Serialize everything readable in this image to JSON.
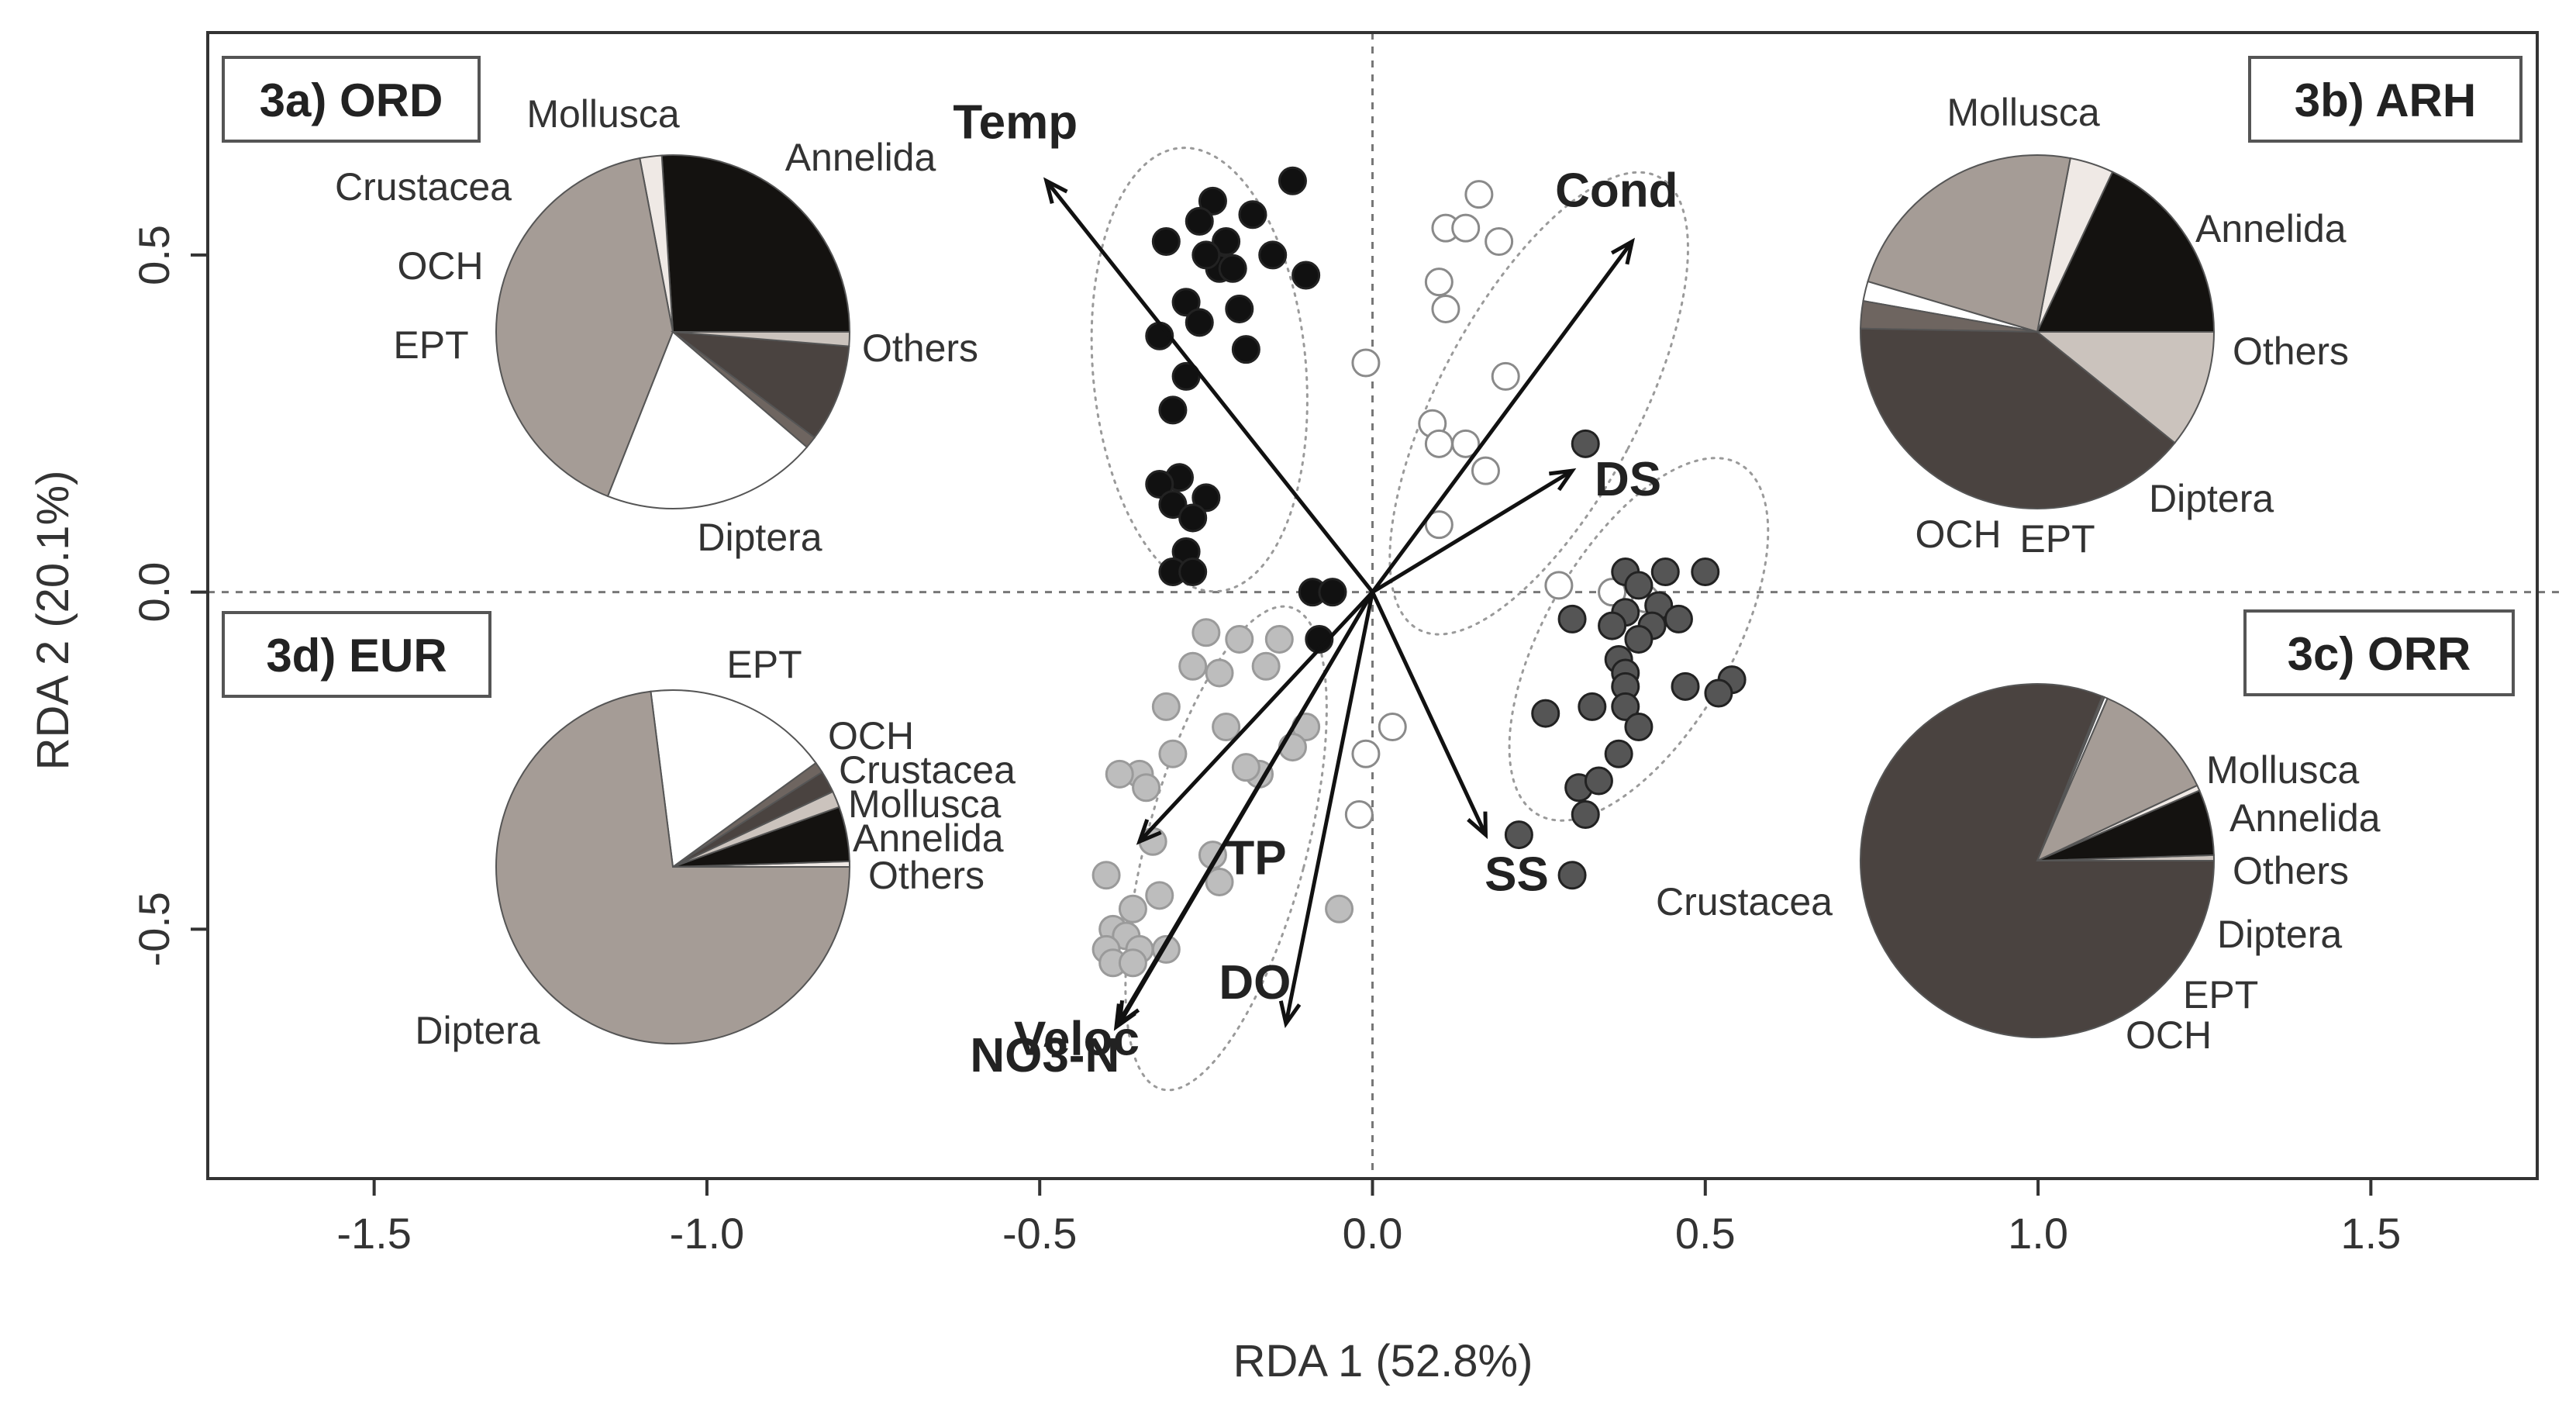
{
  "chart_data": {
    "type": "scatter",
    "subtype": "RDA biplot with pie-chart insets",
    "xlabel": "RDA 1 (52.8%)",
    "ylabel": "RDA 2 (20.1%)",
    "xlim": [
      -1.75,
      1.75
    ],
    "ylim": [
      -0.87,
      0.83
    ],
    "x_ticks": [
      -1.5,
      -1.0,
      -0.5,
      0.0,
      0.5,
      1.0,
      1.5
    ],
    "x_tick_labels": [
      "-1.5",
      "-1.0",
      "-0.5",
      "0.0",
      "0.5",
      "1.0",
      "1.5"
    ],
    "y_ticks": [
      -0.5,
      0.0,
      0.5
    ],
    "y_tick_labels": [
      "-0.5",
      "0.0",
      "0.5"
    ],
    "origin_lines": true,
    "colors": {
      "ORD": "#111111",
      "ARH": "#ffffff",
      "ORR": "#555555",
      "EUR": "#bdbdbd",
      "arrow": "#111111",
      "ellipse": "#9a9a9a",
      "Mollusca": "#cbc3bd",
      "Annelida": "#141210",
      "Others": "#efe9e5",
      "Diptera": "#a59c96",
      "EPT": "#ffffff",
      "OCH": "#6e6560",
      "Crustacea": "#4a4340"
    },
    "arrows": [
      {
        "label": "Temp",
        "x": -0.49,
        "y": 0.61
      },
      {
        "label": "Cond",
        "x": 0.39,
        "y": 0.52
      },
      {
        "label": "DS",
        "x": 0.3,
        "y": 0.18
      },
      {
        "label": "SS",
        "x": 0.17,
        "y": -0.36
      },
      {
        "label": "TP",
        "x": -0.35,
        "y": -0.37
      },
      {
        "label": "NO3-N",
        "x": -0.38,
        "y": -0.64
      },
      {
        "label": "DO",
        "x": -0.13,
        "y": -0.64
      },
      {
        "label": "Veloc",
        "x": -0.385,
        "y": -0.645
      }
    ],
    "ellipses": [
      {
        "group": "ORD",
        "cx": -0.26,
        "cy": 0.33,
        "rx": 0.16,
        "ry": 0.33,
        "angle": -5
      },
      {
        "group": "ARH",
        "cx": 0.25,
        "cy": 0.28,
        "rx": 0.15,
        "ry": 0.38,
        "angle": 28
      },
      {
        "group": "ORR",
        "cx": 0.4,
        "cy": -0.07,
        "rx": 0.14,
        "ry": 0.3,
        "angle": 30
      },
      {
        "group": "EUR",
        "cx": -0.22,
        "cy": -0.38,
        "rx": 0.12,
        "ry": 0.37,
        "angle": 15
      }
    ],
    "series": [
      {
        "name": "ORD",
        "fill": "#111111",
        "points": [
          [
            -0.24,
            0.58
          ],
          [
            -0.12,
            0.61
          ],
          [
            -0.18,
            0.56
          ],
          [
            -0.26,
            0.55
          ],
          [
            -0.22,
            0.52
          ],
          [
            -0.15,
            0.5
          ],
          [
            -0.31,
            0.52
          ],
          [
            -0.23,
            0.48
          ],
          [
            -0.25,
            0.5
          ],
          [
            -0.21,
            0.48
          ],
          [
            -0.1,
            0.47
          ],
          [
            -0.28,
            0.43
          ],
          [
            -0.2,
            0.42
          ],
          [
            -0.26,
            0.4
          ],
          [
            -0.32,
            0.38
          ],
          [
            -0.19,
            0.36
          ],
          [
            -0.28,
            0.32
          ],
          [
            -0.3,
            0.27
          ],
          [
            -0.29,
            0.17
          ],
          [
            -0.32,
            0.16
          ],
          [
            -0.25,
            0.14
          ],
          [
            -0.3,
            0.13
          ],
          [
            -0.27,
            0.11
          ],
          [
            -0.28,
            0.06
          ],
          [
            -0.3,
            0.03
          ],
          [
            -0.27,
            0.03
          ],
          [
            -0.09,
            0.0
          ],
          [
            -0.06,
            0.0
          ],
          [
            -0.08,
            -0.07
          ]
        ]
      },
      {
        "name": "ARH",
        "fill": "#ffffff",
        "points": [
          [
            0.16,
            0.59
          ],
          [
            0.11,
            0.54
          ],
          [
            0.14,
            0.54
          ],
          [
            0.19,
            0.52
          ],
          [
            0.1,
            0.46
          ],
          [
            0.11,
            0.42
          ],
          [
            -0.01,
            0.34
          ],
          [
            0.2,
            0.32
          ],
          [
            0.09,
            0.25
          ],
          [
            0.1,
            0.22
          ],
          [
            0.14,
            0.22
          ],
          [
            0.17,
            0.18
          ],
          [
            0.1,
            0.1
          ],
          [
            0.28,
            0.01
          ],
          [
            0.36,
            0.0
          ],
          [
            0.41,
            -0.01
          ],
          [
            -0.01,
            -0.24
          ],
          [
            -0.02,
            -0.33
          ],
          [
            0.03,
            -0.2
          ]
        ]
      },
      {
        "name": "ORR",
        "fill": "#555555",
        "points": [
          [
            0.32,
            0.22
          ],
          [
            0.38,
            0.03
          ],
          [
            0.44,
            0.03
          ],
          [
            0.5,
            0.03
          ],
          [
            0.4,
            0.01
          ],
          [
            0.43,
            -0.02
          ],
          [
            0.38,
            -0.03
          ],
          [
            0.46,
            -0.04
          ],
          [
            0.3,
            -0.04
          ],
          [
            0.36,
            -0.05
          ],
          [
            0.42,
            -0.05
          ],
          [
            0.4,
            -0.07
          ],
          [
            0.37,
            -0.1
          ],
          [
            0.38,
            -0.12
          ],
          [
            0.54,
            -0.13
          ],
          [
            0.47,
            -0.14
          ],
          [
            0.38,
            -0.14
          ],
          [
            0.52,
            -0.15
          ],
          [
            0.33,
            -0.17
          ],
          [
            0.26,
            -0.18
          ],
          [
            0.38,
            -0.17
          ],
          [
            0.4,
            -0.2
          ],
          [
            0.37,
            -0.24
          ],
          [
            0.31,
            -0.29
          ],
          [
            0.34,
            -0.28
          ],
          [
            0.32,
            -0.33
          ],
          [
            0.22,
            -0.36
          ],
          [
            0.3,
            -0.42
          ]
        ]
      },
      {
        "name": "EUR",
        "fill": "#bdbdbd",
        "points": [
          [
            -0.25,
            -0.06
          ],
          [
            -0.2,
            -0.07
          ],
          [
            -0.14,
            -0.07
          ],
          [
            -0.27,
            -0.11
          ],
          [
            -0.23,
            -0.12
          ],
          [
            -0.16,
            -0.11
          ],
          [
            -0.31,
            -0.17
          ],
          [
            -0.22,
            -0.2
          ],
          [
            -0.1,
            -0.2
          ],
          [
            -0.3,
            -0.24
          ],
          [
            -0.12,
            -0.23
          ],
          [
            -0.17,
            -0.27
          ],
          [
            -0.35,
            -0.27
          ],
          [
            -0.38,
            -0.27
          ],
          [
            -0.19,
            -0.26
          ],
          [
            -0.34,
            -0.29
          ],
          [
            -0.33,
            -0.37
          ],
          [
            -0.24,
            -0.39
          ],
          [
            -0.23,
            -0.43
          ],
          [
            -0.4,
            -0.42
          ],
          [
            -0.32,
            -0.45
          ],
          [
            -0.36,
            -0.47
          ],
          [
            -0.39,
            -0.5
          ],
          [
            -0.37,
            -0.51
          ],
          [
            -0.35,
            -0.53
          ],
          [
            -0.31,
            -0.53
          ],
          [
            -0.4,
            -0.53
          ],
          [
            -0.39,
            -0.55
          ],
          [
            -0.36,
            -0.55
          ],
          [
            -0.05,
            -0.47
          ]
        ]
      }
    ],
    "pies": [
      {
        "id": "ORD",
        "label": "3a) ORD",
        "anchor": [
          -1.06,
          0.4
        ],
        "slices": [
          {
            "name": "Annelida",
            "value": 26.0
          },
          {
            "name": "Others",
            "value": 2.0
          },
          {
            "name": "Diptera",
            "value": 41.0
          },
          {
            "name": "EPT",
            "value": 19.7
          },
          {
            "name": "OCH",
            "value": 1.1
          },
          {
            "name": "Crustacea",
            "value": 8.9
          },
          {
            "name": "Mollusca",
            "value": 1.3
          }
        ]
      },
      {
        "id": "ARH",
        "label": "3b) ARH",
        "anchor": [
          0.98,
          0.4
        ],
        "slices": [
          {
            "name": "Annelida",
            "value": 18.0
          },
          {
            "name": "Others",
            "value": 4.0
          },
          {
            "name": "Diptera",
            "value": 23.4
          },
          {
            "name": "EPT",
            "value": 1.8
          },
          {
            "name": "OCH",
            "value": 2.5
          },
          {
            "name": "Crustacea",
            "value": 39.5
          },
          {
            "name": "Mollusca",
            "value": 10.8
          }
        ]
      },
      {
        "id": "ORR",
        "label": "3c) ORR",
        "anchor": [
          0.98,
          -0.4
        ],
        "slices": [
          {
            "name": "Mollusca",
            "value": 0.5
          },
          {
            "name": "Annelida",
            "value": 6.0
          },
          {
            "name": "Others",
            "value": 0.5
          },
          {
            "name": "Diptera",
            "value": 11.5
          },
          {
            "name": "EPT",
            "value": 0.3
          },
          {
            "name": "OCH",
            "value": 0.2
          },
          {
            "name": "Crustacea",
            "value": 81.0
          }
        ]
      },
      {
        "id": "EUR",
        "label": "3d) EUR",
        "anchor": [
          -1.06,
          -0.4
        ],
        "slices": [
          {
            "name": "Others",
            "value": 0.5
          },
          {
            "name": "Annelida",
            "value": 5.0
          },
          {
            "name": "Mollusca",
            "value": 1.5
          },
          {
            "name": "Crustacea",
            "value": 2.0
          },
          {
            "name": "OCH",
            "value": 1.0
          },
          {
            "name": "EPT",
            "value": 17.0
          },
          {
            "name": "Diptera",
            "value": 73.0
          }
        ]
      }
    ]
  }
}
